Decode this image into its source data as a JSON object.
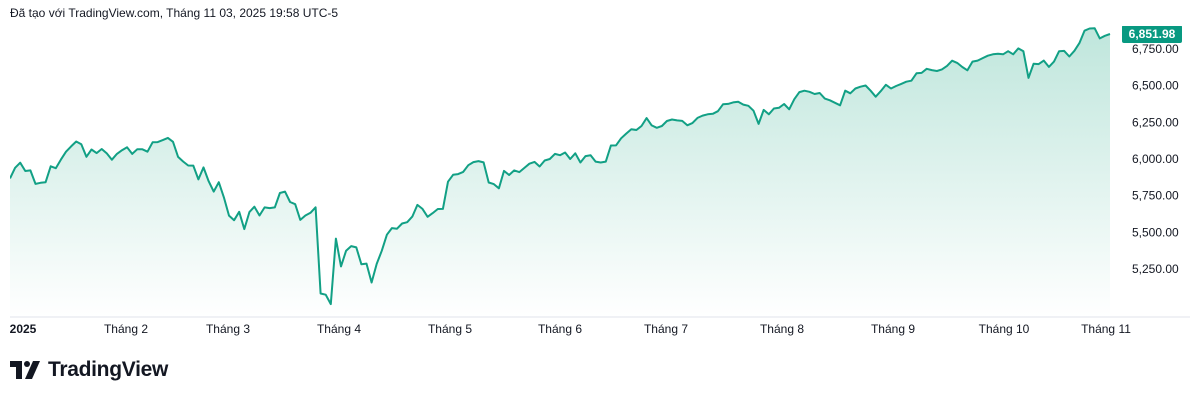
{
  "caption": "Đã tạo với TradingView.com, Tháng 11 03, 2025 19:58 UTC-5",
  "brand": {
    "name": "TradingView",
    "logo_icon": "tradingview-logo-icon"
  },
  "colors": {
    "line": "#12a085",
    "fill_top": "#bfe6dc",
    "fill_bottom": "#ffffff",
    "badge": "#089981",
    "divider": "#e0e3eb"
  },
  "chart_data": {
    "type": "area",
    "x_labels": [
      "2025",
      "Tháng 2",
      "Tháng 3",
      "Tháng 4",
      "Tháng 5",
      "Tháng 6",
      "Tháng 7",
      "Tháng 8",
      "Tháng 9",
      "Tháng 10",
      "Tháng 11"
    ],
    "y_ticks": [
      "5,250.00",
      "5,500.00",
      "5,750.00",
      "6,000.00",
      "6,250.00",
      "6,500.00",
      "6,750.00"
    ],
    "y_tick_values": [
      5250,
      5500,
      5750,
      6000,
      6250,
      6500,
      6750
    ],
    "ylim": [
      5000,
      6900
    ],
    "last_value": 6851.98,
    "last_value_label": "6,851.98",
    "grid": false,
    "series": [
      {
        "values": [
          5868,
          5940,
          5975,
          5918,
          5922,
          5830,
          5838,
          5842,
          5950,
          5937,
          5996,
          6050,
          6086,
          6119,
          6101,
          6015,
          6065,
          6040,
          6068,
          6038,
          5995,
          6035,
          6060,
          6080,
          6035,
          6067,
          6066,
          6050,
          6114,
          6115,
          6129,
          6144,
          6117,
          6014,
          5983,
          5956,
          5955,
          5861,
          5943,
          5849,
          5778,
          5842,
          5738,
          5614,
          5583,
          5640,
          5522,
          5638,
          5675,
          5615,
          5670,
          5665,
          5670,
          5768,
          5778,
          5707,
          5692,
          5585,
          5615,
          5633,
          5671,
          5083,
          5075,
          5011,
          5457,
          5268,
          5375,
          5406,
          5397,
          5282,
          5287,
          5158,
          5285,
          5375,
          5484,
          5529,
          5525,
          5560,
          5569,
          5607,
          5687,
          5660,
          5606,
          5631,
          5659,
          5660,
          5845,
          5892,
          5897,
          5912,
          5958,
          5979,
          5986,
          5977,
          5840,
          5829,
          5800,
          5919,
          5891,
          5922,
          5911,
          5939,
          5968,
          5980,
          5949,
          5990,
          6000,
          6035,
          6026,
          6044,
          6000,
          6039,
          5976,
          6020,
          6025,
          5982,
          5976,
          5982,
          6092,
          6093,
          6141,
          6173,
          6203,
          6198,
          6225,
          6279,
          6229,
          6213,
          6225,
          6259,
          6269,
          6263,
          6260,
          6230,
          6245,
          6280,
          6296,
          6305,
          6308,
          6326,
          6373,
          6376,
          6386,
          6390,
          6371,
          6363,
          6329,
          6239,
          6335,
          6305,
          6344,
          6349,
          6375,
          6339,
          6408,
          6456,
          6466,
          6458,
          6443,
          6450,
          6412,
          6400,
          6383,
          6366,
          6466,
          6448,
          6481,
          6493,
          6501,
          6466,
          6425,
          6463,
          6506,
          6481,
          6498,
          6512,
          6527,
          6534,
          6584,
          6587,
          6615,
          6606,
          6600,
          6611,
          6635,
          6670,
          6655,
          6627,
          6605,
          6664,
          6671,
          6688,
          6704,
          6714,
          6717,
          6714,
          6735,
          6714,
          6754,
          6734,
          6553,
          6650,
          6647,
          6671,
          6628,
          6664,
          6735,
          6737,
          6699,
          6738,
          6790,
          6875,
          6890,
          6891,
          6822,
          6840,
          6852
        ]
      }
    ]
  }
}
